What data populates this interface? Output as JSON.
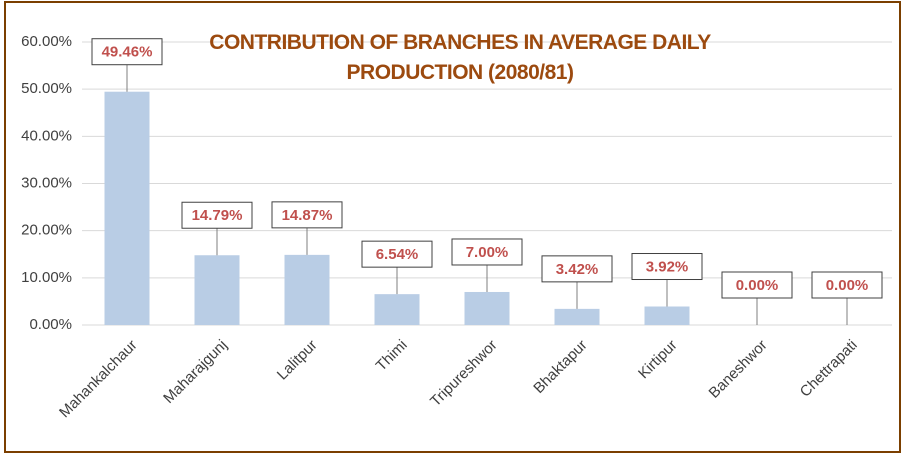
{
  "chart_data": {
    "type": "bar",
    "title": "CONTRIBUTION OF BRANCHES IN AVERAGE DAILY PRODUCTION (2080/81)",
    "categories": [
      "Mahankalchaur",
      "Maharajgunj",
      "Lalitpur",
      "Thimi",
      "Tripureshwor",
      "Bhaktapur",
      "Kirtipur",
      "Baneshwor",
      "Chettrapati"
    ],
    "values": [
      49.46,
      14.79,
      14.87,
      6.54,
      7.0,
      3.42,
      3.92,
      0.0,
      0.0
    ],
    "value_labels": [
      "49.46%",
      "14.79%",
      "14.87%",
      "6.54%",
      "7.00%",
      "3.42%",
      "3.92%",
      "0.00%",
      "0.00%"
    ],
    "color": "#b9cde5",
    "ylim": [
      0,
      60
    ],
    "yticks": [
      {
        "value": 0,
        "label": "0.00%"
      },
      {
        "value": 10,
        "label": "10.00%"
      },
      {
        "value": 20,
        "label": "20.00%"
      },
      {
        "value": 30,
        "label": "30.00%"
      },
      {
        "value": 40,
        "label": "40.00%"
      },
      {
        "value": 50,
        "label": "50.00%"
      },
      {
        "value": 60,
        "label": "60.00%"
      }
    ],
    "grid": true
  }
}
